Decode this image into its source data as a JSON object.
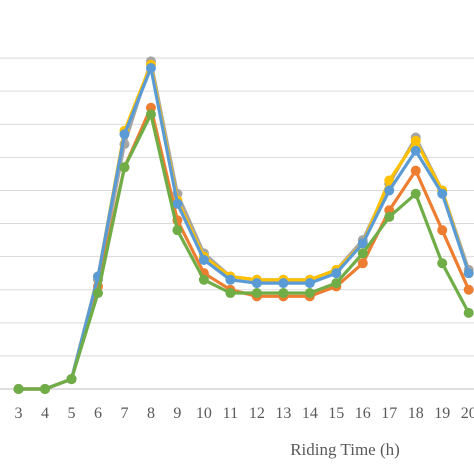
{
  "chart_data": {
    "type": "line",
    "xlabel": "Riding Time (h)",
    "ylabel": "",
    "title": "",
    "x": [
      3,
      4,
      5,
      6,
      7,
      8,
      9,
      10,
      11,
      12,
      13,
      14,
      15,
      16,
      17,
      18,
      19,
      20
    ],
    "xlim": [
      2.3,
      20.2
    ],
    "ylim": [
      0,
      11
    ],
    "grid": true,
    "series": [
      {
        "color": "#A5A5A5",
        "values": [
          0.0,
          0.0,
          0.3,
          3.3,
          7.4,
          9.9,
          5.9,
          4.1,
          3.4,
          3.3,
          3.3,
          3.3,
          3.6,
          4.5,
          6.2,
          7.6,
          6.0,
          3.6
        ]
      },
      {
        "color": "#FFC000",
        "values": [
          0.0,
          0.0,
          0.3,
          3.4,
          7.8,
          9.8,
          5.7,
          4.0,
          3.4,
          3.3,
          3.3,
          3.3,
          3.6,
          4.4,
          6.3,
          7.5,
          6.0,
          3.5
        ]
      },
      {
        "color": "#ED7D31",
        "values": [
          0.0,
          0.0,
          0.3,
          3.1,
          6.7,
          8.5,
          5.1,
          3.5,
          3.0,
          2.8,
          2.8,
          2.8,
          3.1,
          3.8,
          5.4,
          6.6,
          4.8,
          3.0
        ]
      },
      {
        "color": "#5B9BD5",
        "values": [
          0.0,
          0.0,
          0.3,
          3.4,
          7.7,
          9.7,
          5.6,
          3.9,
          3.3,
          3.2,
          3.2,
          3.2,
          3.5,
          4.4,
          6.0,
          7.2,
          5.9,
          3.5
        ]
      },
      {
        "color": "#70AD47",
        "values": [
          0.0,
          0.0,
          0.3,
          2.9,
          6.7,
          8.3,
          4.8,
          3.3,
          2.9,
          2.9,
          2.9,
          2.9,
          3.2,
          4.1,
          5.2,
          5.9,
          3.8,
          2.3
        ]
      }
    ]
  }
}
